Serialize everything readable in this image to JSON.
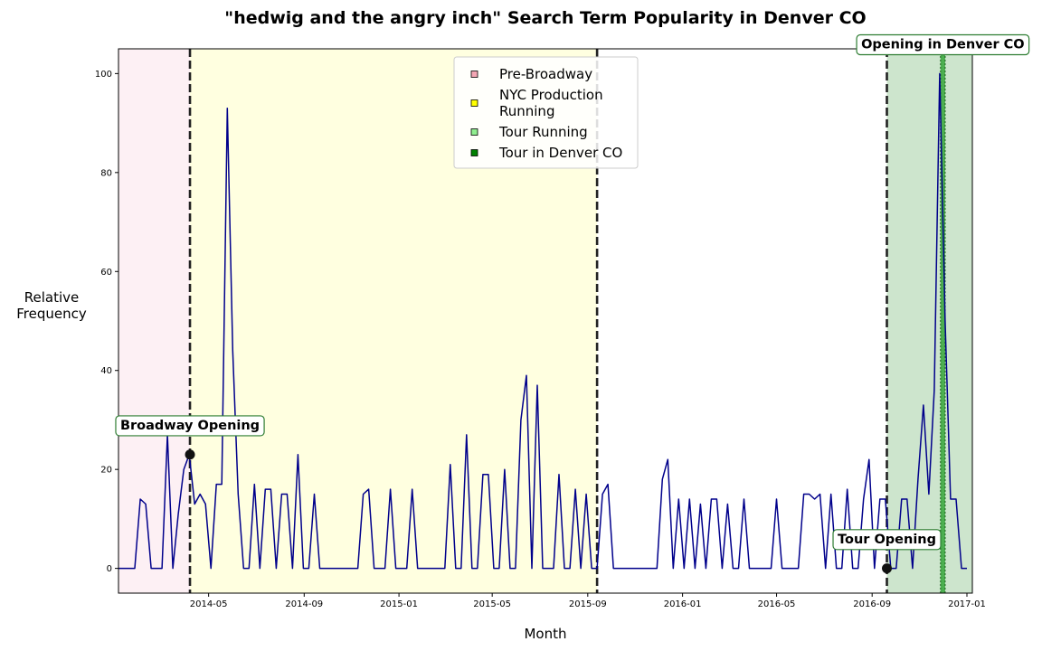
{
  "chart_data": {
    "type": "line",
    "title": "\"hedwig and the angry inch\" Search Term Popularity in Denver CO",
    "xlabel": "Month",
    "ylabel_lines": [
      "Relative",
      "Frequency"
    ],
    "xlim": [
      "2014-01-05",
      "2017-01-08"
    ],
    "ylim": [
      -5,
      105
    ],
    "x_tick_labels": [
      "2014-05",
      "2014-09",
      "2015-01",
      "2015-05",
      "2015-09",
      "2016-01",
      "2016-05",
      "2016-09",
      "2017-01"
    ],
    "x_tick_dates": [
      "2014-05-01",
      "2014-09-01",
      "2015-01-01",
      "2015-05-01",
      "2015-09-01",
      "2016-01-01",
      "2016-05-01",
      "2016-09-01",
      "2017-01-01"
    ],
    "y_ticks": [
      0,
      20,
      40,
      60,
      80,
      100
    ],
    "grid": false,
    "legend_position": "top-center",
    "series": [
      {
        "color": "#00008b",
        "points": [
          [
            "2014-01-05",
            0
          ],
          [
            "2014-01-12",
            0
          ],
          [
            "2014-01-19",
            0
          ],
          [
            "2014-01-26",
            0
          ],
          [
            "2014-02-02",
            14
          ],
          [
            "2014-02-09",
            13
          ],
          [
            "2014-02-16",
            0
          ],
          [
            "2014-02-23",
            0
          ],
          [
            "2014-03-02",
            0
          ],
          [
            "2014-03-09",
            27
          ],
          [
            "2014-03-16",
            0
          ],
          [
            "2014-03-23",
            11
          ],
          [
            "2014-03-30",
            20
          ],
          [
            "2014-04-06",
            23
          ],
          [
            "2014-04-13",
            13
          ],
          [
            "2014-04-20",
            15
          ],
          [
            "2014-04-27",
            13
          ],
          [
            "2014-05-04",
            0
          ],
          [
            "2014-05-11",
            17
          ],
          [
            "2014-05-18",
            17
          ],
          [
            "2014-05-25",
            93
          ],
          [
            "2014-06-01",
            44
          ],
          [
            "2014-06-08",
            15
          ],
          [
            "2014-06-15",
            0
          ],
          [
            "2014-06-22",
            0
          ],
          [
            "2014-06-29",
            17
          ],
          [
            "2014-07-06",
            0
          ],
          [
            "2014-07-13",
            16
          ],
          [
            "2014-07-20",
            16
          ],
          [
            "2014-07-27",
            0
          ],
          [
            "2014-08-03",
            15
          ],
          [
            "2014-08-10",
            15
          ],
          [
            "2014-08-17",
            0
          ],
          [
            "2014-08-24",
            23
          ],
          [
            "2014-08-31",
            0
          ],
          [
            "2014-09-07",
            0
          ],
          [
            "2014-09-14",
            15
          ],
          [
            "2014-09-21",
            0
          ],
          [
            "2014-09-28",
            0
          ],
          [
            "2014-10-05",
            0
          ],
          [
            "2014-10-12",
            0
          ],
          [
            "2014-10-19",
            0
          ],
          [
            "2014-10-26",
            0
          ],
          [
            "2014-11-02",
            0
          ],
          [
            "2014-11-09",
            0
          ],
          [
            "2014-11-16",
            15
          ],
          [
            "2014-11-23",
            16
          ],
          [
            "2014-11-30",
            0
          ],
          [
            "2014-12-07",
            0
          ],
          [
            "2014-12-14",
            0
          ],
          [
            "2014-12-21",
            16
          ],
          [
            "2014-12-28",
            0
          ],
          [
            "2015-01-04",
            0
          ],
          [
            "2015-01-11",
            0
          ],
          [
            "2015-01-18",
            16
          ],
          [
            "2015-01-25",
            0
          ],
          [
            "2015-02-01",
            0
          ],
          [
            "2015-02-08",
            0
          ],
          [
            "2015-02-15",
            0
          ],
          [
            "2015-02-22",
            0
          ],
          [
            "2015-03-01",
            0
          ],
          [
            "2015-03-08",
            21
          ],
          [
            "2015-03-15",
            0
          ],
          [
            "2015-03-22",
            0
          ],
          [
            "2015-03-29",
            27
          ],
          [
            "2015-04-05",
            0
          ],
          [
            "2015-04-12",
            0
          ],
          [
            "2015-04-19",
            19
          ],
          [
            "2015-04-26",
            19
          ],
          [
            "2015-05-03",
            0
          ],
          [
            "2015-05-10",
            0
          ],
          [
            "2015-05-17",
            20
          ],
          [
            "2015-05-24",
            0
          ],
          [
            "2015-05-31",
            0
          ],
          [
            "2015-06-07",
            30
          ],
          [
            "2015-06-14",
            39
          ],
          [
            "2015-06-21",
            0
          ],
          [
            "2015-06-28",
            37
          ],
          [
            "2015-07-05",
            0
          ],
          [
            "2015-07-12",
            0
          ],
          [
            "2015-07-19",
            0
          ],
          [
            "2015-07-26",
            19
          ],
          [
            "2015-08-02",
            0
          ],
          [
            "2015-08-09",
            0
          ],
          [
            "2015-08-16",
            16
          ],
          [
            "2015-08-23",
            0
          ],
          [
            "2015-08-30",
            15
          ],
          [
            "2015-09-06",
            0
          ],
          [
            "2015-09-13",
            0
          ],
          [
            "2015-09-20",
            15
          ],
          [
            "2015-09-27",
            17
          ],
          [
            "2015-10-04",
            0
          ],
          [
            "2015-10-11",
            0
          ],
          [
            "2015-10-18",
            0
          ],
          [
            "2015-10-25",
            0
          ],
          [
            "2015-11-01",
            0
          ],
          [
            "2015-11-08",
            0
          ],
          [
            "2015-11-15",
            0
          ],
          [
            "2015-11-22",
            0
          ],
          [
            "2015-11-29",
            0
          ],
          [
            "2015-12-06",
            18
          ],
          [
            "2015-12-13",
            22
          ],
          [
            "2015-12-20",
            0
          ],
          [
            "2015-12-27",
            14
          ],
          [
            "2016-01-03",
            0
          ],
          [
            "2016-01-10",
            14
          ],
          [
            "2016-01-17",
            0
          ],
          [
            "2016-01-24",
            13
          ],
          [
            "2016-01-31",
            0
          ],
          [
            "2016-02-07",
            14
          ],
          [
            "2016-02-14",
            14
          ],
          [
            "2016-02-21",
            0
          ],
          [
            "2016-02-28",
            13
          ],
          [
            "2016-03-06",
            0
          ],
          [
            "2016-03-13",
            0
          ],
          [
            "2016-03-20",
            14
          ],
          [
            "2016-03-27",
            0
          ],
          [
            "2016-04-03",
            0
          ],
          [
            "2016-04-10",
            0
          ],
          [
            "2016-04-17",
            0
          ],
          [
            "2016-04-24",
            0
          ],
          [
            "2016-05-01",
            14
          ],
          [
            "2016-05-08",
            0
          ],
          [
            "2016-05-15",
            0
          ],
          [
            "2016-05-22",
            0
          ],
          [
            "2016-05-29",
            0
          ],
          [
            "2016-06-05",
            15
          ],
          [
            "2016-06-12",
            15
          ],
          [
            "2016-06-19",
            14
          ],
          [
            "2016-06-26",
            15
          ],
          [
            "2016-07-03",
            0
          ],
          [
            "2016-07-10",
            15
          ],
          [
            "2016-07-17",
            0
          ],
          [
            "2016-07-24",
            0
          ],
          [
            "2016-07-31",
            16
          ],
          [
            "2016-08-07",
            0
          ],
          [
            "2016-08-14",
            0
          ],
          [
            "2016-08-21",
            14
          ],
          [
            "2016-08-28",
            22
          ],
          [
            "2016-09-04",
            0
          ],
          [
            "2016-09-11",
            14
          ],
          [
            "2016-09-18",
            14
          ],
          [
            "2016-09-25",
            0
          ],
          [
            "2016-10-02",
            0
          ],
          [
            "2016-10-09",
            14
          ],
          [
            "2016-10-16",
            14
          ],
          [
            "2016-10-23",
            0
          ],
          [
            "2016-10-30",
            18
          ],
          [
            "2016-11-06",
            33
          ],
          [
            "2016-11-13",
            15
          ],
          [
            "2016-11-20",
            36
          ],
          [
            "2016-11-27",
            100
          ],
          [
            "2016-12-04",
            50
          ],
          [
            "2016-12-11",
            14
          ],
          [
            "2016-12-18",
            14
          ],
          [
            "2016-12-25",
            0
          ],
          [
            "2017-01-01",
            0
          ]
        ]
      }
    ],
    "periods": [
      {
        "start": "2014-01-05",
        "end": "2014-04-07",
        "fill": "#fdf0f4",
        "legend": "Pre-Broadway",
        "swatch": "#f4a6b4"
      },
      {
        "start": "2014-04-07",
        "end": "2015-09-13",
        "fill": "#ffffe0",
        "legend_lines": [
          "NYC Production",
          "Running"
        ],
        "swatch": "#ffff00"
      },
      {
        "start": "2016-09-20",
        "end": "2017-01-08",
        "fill": "#cde5cd",
        "legend": "Tour Running",
        "swatch": "#90ee90"
      },
      {
        "start": "2016-11-28",
        "end": "2016-12-04",
        "fill": "#4caf50",
        "legend": "Tour in Denver CO",
        "swatch": "#008000"
      }
    ],
    "vlines": [
      "2014-04-07",
      "2015-09-13",
      "2016-09-20"
    ],
    "markers": [
      {
        "x": "2014-04-07",
        "y": 23
      },
      {
        "x": "2016-09-20",
        "y": 0
      }
    ],
    "annotations": [
      {
        "text": "Broadway Opening",
        "x": "2014-04-07",
        "y": 29
      },
      {
        "text": "Tour Opening",
        "x": "2016-09-20",
        "y": 6
      },
      {
        "text": "Opening in Denver CO",
        "x": "2016-12-01",
        "y": 106
      }
    ]
  }
}
